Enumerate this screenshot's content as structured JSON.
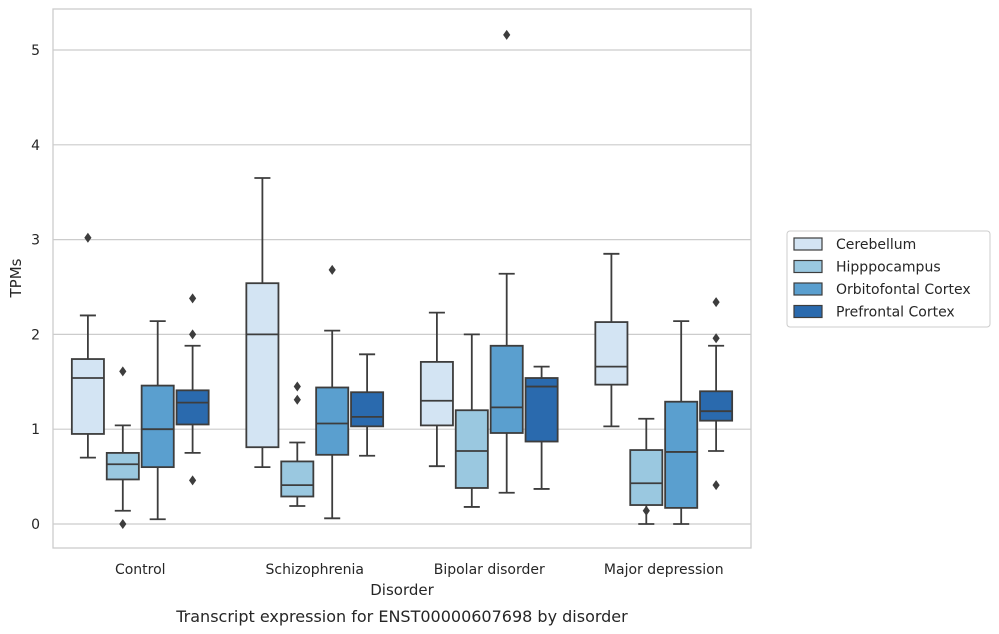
{
  "caption": "Transcript expression for ENST00000607698 by disorder",
  "chart_data": {
    "type": "box",
    "title": "",
    "xlabel": "Disorder",
    "ylabel": "TPMs",
    "ylim": [
      -0.25,
      5.4
    ],
    "yticks": [
      "0",
      "1",
      "2",
      "3",
      "4",
      "5"
    ],
    "grid": "horizontal",
    "legend_position": "right",
    "categories": [
      "Control",
      "Schizophrenia",
      "Bipolar disorder",
      "Major depression"
    ],
    "series": [
      {
        "name": "Cerebellum",
        "color": "#d3e4f3",
        "boxes": [
          {
            "whislo": 0.7,
            "q1": 0.95,
            "med": 1.54,
            "q3": 1.74,
            "whishi": 2.2,
            "fliers": [
              3.02
            ]
          },
          {
            "whislo": 0.6,
            "q1": 0.81,
            "med": 2.0,
            "q3": 2.54,
            "whishi": 3.65,
            "fliers": []
          },
          {
            "whislo": 0.61,
            "q1": 1.04,
            "med": 1.3,
            "q3": 1.71,
            "whishi": 2.23,
            "fliers": []
          },
          {
            "whislo": 1.03,
            "q1": 1.47,
            "med": 1.66,
            "q3": 2.13,
            "whishi": 2.85,
            "fliers": []
          }
        ]
      },
      {
        "name": "Hipppocampus",
        "color": "#9ac8e0",
        "boxes": [
          {
            "whislo": 0.14,
            "q1": 0.47,
            "med": 0.63,
            "q3": 0.75,
            "whishi": 1.04,
            "fliers": [
              1.61,
              0.0
            ]
          },
          {
            "whislo": 0.19,
            "q1": 0.29,
            "med": 0.41,
            "q3": 0.66,
            "whishi": 0.86,
            "fliers": [
              1.45,
              1.31
            ]
          },
          {
            "whislo": 0.18,
            "q1": 0.38,
            "med": 0.77,
            "q3": 1.2,
            "whishi": 2.0,
            "fliers": []
          },
          {
            "whislo": 0.0,
            "q1": 0.2,
            "med": 0.43,
            "q3": 0.78,
            "whishi": 1.11,
            "fliers": [
              0.14
            ]
          }
        ]
      },
      {
        "name": "Orbitofontal Cortex",
        "color": "#5a9fcf",
        "boxes": [
          {
            "whislo": 0.05,
            "q1": 0.6,
            "med": 1.0,
            "q3": 1.46,
            "whishi": 2.14,
            "fliers": []
          },
          {
            "whislo": 0.06,
            "q1": 0.73,
            "med": 1.06,
            "q3": 1.44,
            "whishi": 2.04,
            "fliers": [
              2.68
            ]
          },
          {
            "whislo": 0.33,
            "q1": 0.96,
            "med": 1.23,
            "q3": 1.88,
            "whishi": 2.64,
            "fliers": [
              5.16
            ]
          },
          {
            "whislo": 0.0,
            "q1": 0.17,
            "med": 0.76,
            "q3": 1.29,
            "whishi": 2.14,
            "fliers": []
          }
        ]
      },
      {
        "name": "Prefrontal Cortex",
        "color": "#2a6aae",
        "boxes": [
          {
            "whislo": 0.75,
            "q1": 1.05,
            "med": 1.28,
            "q3": 1.41,
            "whishi": 1.88,
            "fliers": [
              2.38,
              2.0,
              0.46
            ]
          },
          {
            "whislo": 0.72,
            "q1": 1.03,
            "med": 1.13,
            "q3": 1.39,
            "whishi": 1.79,
            "fliers": []
          },
          {
            "whislo": 0.37,
            "q1": 0.87,
            "med": 1.45,
            "q3": 1.54,
            "whishi": 1.66,
            "fliers": []
          },
          {
            "whislo": 0.77,
            "q1": 1.09,
            "med": 1.19,
            "q3": 1.4,
            "whishi": 1.88,
            "fliers": [
              2.34,
              1.96,
              0.41
            ]
          }
        ]
      }
    ]
  }
}
